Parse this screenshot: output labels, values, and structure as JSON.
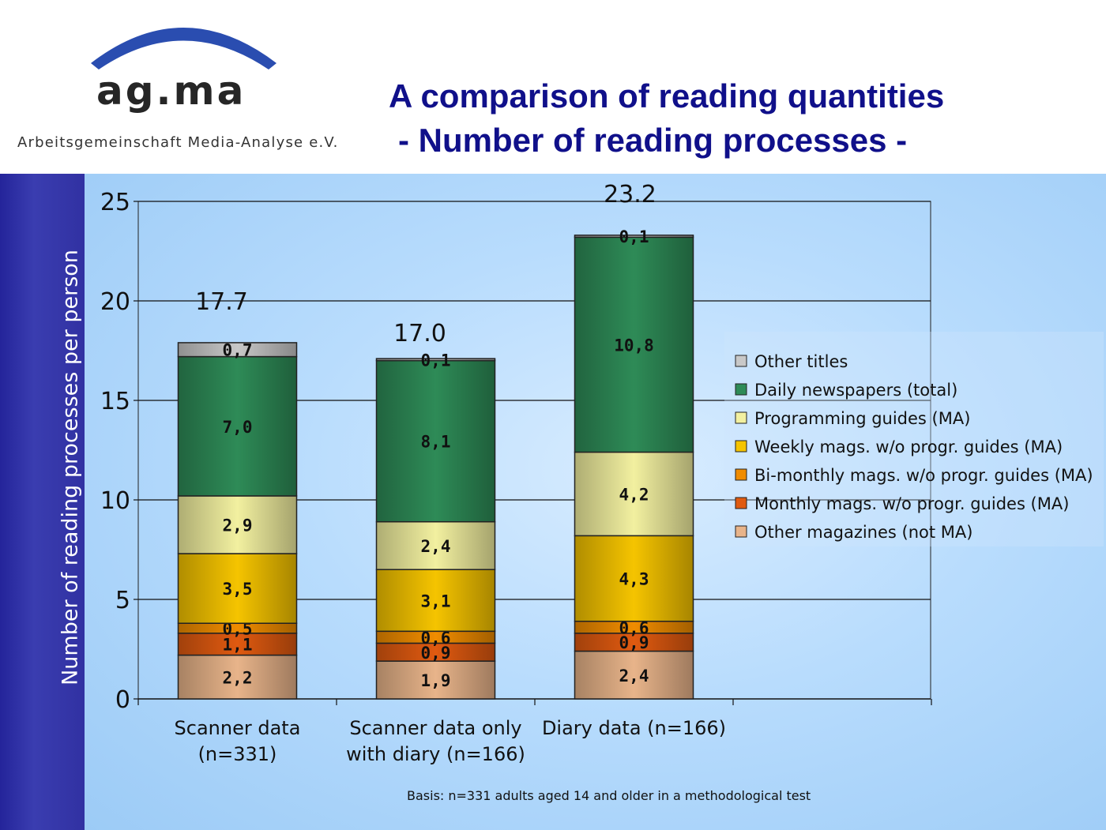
{
  "header": {
    "logo_text": "ag.ma",
    "logo_subtitle": "Arbeitsgemeinschaft Media-Analyse e.V.",
    "logo_arc_color": "#2a4db0",
    "title_line1": "A comparison of reading quantities",
    "title_line2": "- Number of reading processes -"
  },
  "chart_data": {
    "type": "bar",
    "stacked": true,
    "title": "A comparison of reading quantities - Number of reading processes -",
    "ylabel": "Number of reading processes per person",
    "xlabel": "",
    "ylim": [
      0,
      25
    ],
    "yticks": [
      0,
      5,
      10,
      15,
      20,
      25
    ],
    "grid": true,
    "legend_position": "right",
    "categories": [
      [
        "Scanner data",
        "(n=331)"
      ],
      [
        "Scanner data only",
        "with diary (n=166)"
      ],
      [
        "Diary data (n=166)"
      ]
    ],
    "totals": [
      "17.7",
      "17.0",
      "23.2"
    ],
    "series": [
      {
        "name": "Other magazines (not MA)",
        "values": [
          2.2,
          1.9,
          2.4
        ],
        "labels": [
          "2,2",
          "1,9",
          "2,4"
        ],
        "color": "#e8b48a"
      },
      {
        "name": "Monthly mags. w/o progr. guides (MA)",
        "values": [
          1.1,
          0.9,
          0.9
        ],
        "labels": [
          "1,1",
          "0,9",
          "0,9"
        ],
        "color": "#e05a10"
      },
      {
        "name": "Bi-monthly mags. w/o progr. guides (MA)",
        "values": [
          0.5,
          0.6,
          0.6
        ],
        "labels": [
          "0,5",
          "0,6",
          "0,6"
        ],
        "color": "#f08c00"
      },
      {
        "name": "Weekly mags. w/o progr. guides (MA)",
        "values": [
          3.5,
          3.1,
          4.3
        ],
        "labels": [
          "3,5",
          "3,1",
          "4,3"
        ],
        "color": "#f5c400"
      },
      {
        "name": "Programming guides (MA)",
        "values": [
          2.9,
          2.4,
          4.2
        ],
        "labels": [
          "2,9",
          "2,4",
          "4,2"
        ],
        "color": "#f2f0a0"
      },
      {
        "name": "Daily newspapers (total)",
        "values": [
          7.0,
          8.1,
          10.8
        ],
        "labels": [
          "7,0",
          "8,1",
          "10,8"
        ],
        "color": "#2e8b57"
      },
      {
        "name": "Other titles",
        "values": [
          0.7,
          0.1,
          0.1
        ],
        "labels": [
          "0,7",
          "0,1",
          "0,1"
        ],
        "color": "#c8c8c8"
      }
    ],
    "legend_order": [
      6,
      5,
      4,
      3,
      2,
      1,
      0
    ]
  },
  "footer": {
    "basis": "Basis: n=331 adults aged 14 and older in a methodological test"
  }
}
